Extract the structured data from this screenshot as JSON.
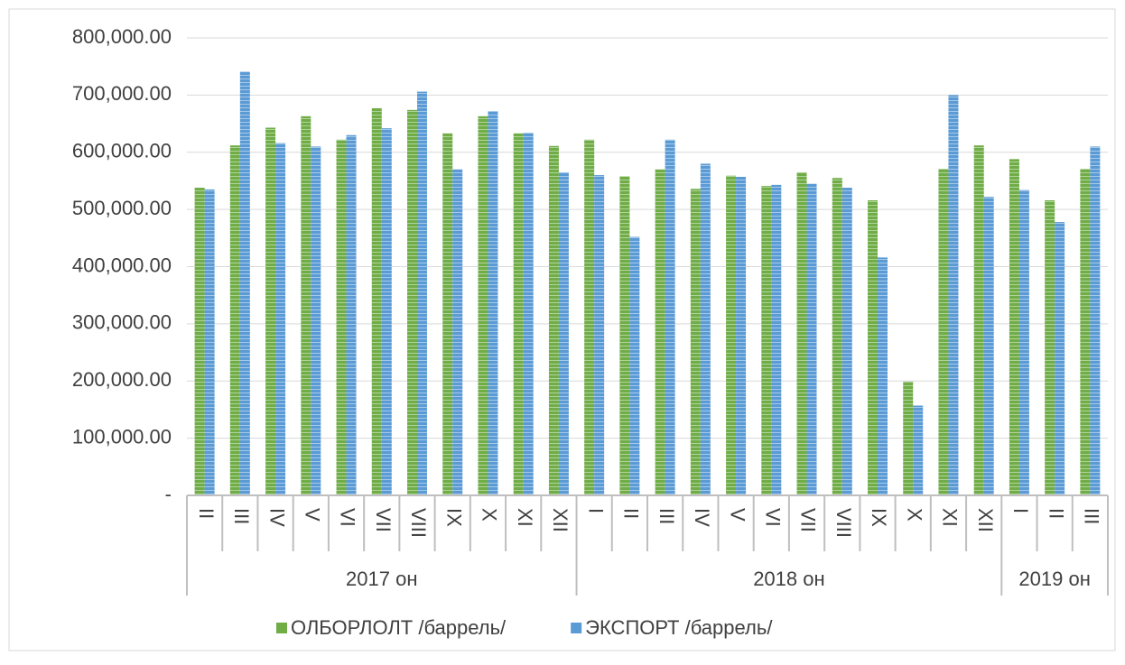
{
  "chart_data": {
    "type": "bar",
    "groups": [
      {
        "name": "2017 он",
        "categories": [
          "II",
          "III",
          "IV",
          "V",
          "VI",
          "VII",
          "VIII",
          "IX",
          "X",
          "XI",
          "XII"
        ]
      },
      {
        "name": "2018 он",
        "categories": [
          "I",
          "II",
          "III",
          "IV",
          "V",
          "VI",
          "VII",
          "VIII",
          "IX",
          "X",
          "XI",
          "XII"
        ]
      },
      {
        "name": "2019 он",
        "categories": [
          "I",
          "II",
          "III"
        ]
      }
    ],
    "series": [
      {
        "name": "ОЛБОРЛОЛТ /баррель/",
        "color": "#70ad47",
        "values": [
          538000,
          612000,
          643000,
          663000,
          622000,
          677000,
          674000,
          633000,
          663000,
          633000,
          611000,
          622000,
          558000,
          570000,
          536000,
          559000,
          541000,
          565000,
          555000,
          516000,
          199000,
          571000,
          612000,
          588000,
          516000,
          571000
        ]
      },
      {
        "name": "ЭКСПОРТ /баррель/",
        "color": "#5b9bd5",
        "values": [
          535000,
          741000,
          616000,
          610000,
          630000,
          642000,
          706000,
          570000,
          672000,
          634000,
          565000,
          560000,
          452000,
          622000,
          580000,
          557000,
          543000,
          545000,
          538000,
          416000,
          157000,
          700000,
          522000,
          534000,
          478000,
          610000
        ]
      }
    ],
    "ylim": [
      0,
      800000
    ],
    "yticks": [
      {
        "value": 0,
        "label": "-"
      },
      {
        "value": 100000,
        "label": "100,000.00"
      },
      {
        "value": 200000,
        "label": "200,000.00"
      },
      {
        "value": 300000,
        "label": "300,000.00"
      },
      {
        "value": 400000,
        "label": "400,000.00"
      },
      {
        "value": 500000,
        "label": "500,000.00"
      },
      {
        "value": 600000,
        "label": "600,000.00"
      },
      {
        "value": 700000,
        "label": "700,000.00"
      },
      {
        "value": 800000,
        "label": "800,000.00"
      }
    ],
    "grid": true,
    "legend": "bottom"
  }
}
